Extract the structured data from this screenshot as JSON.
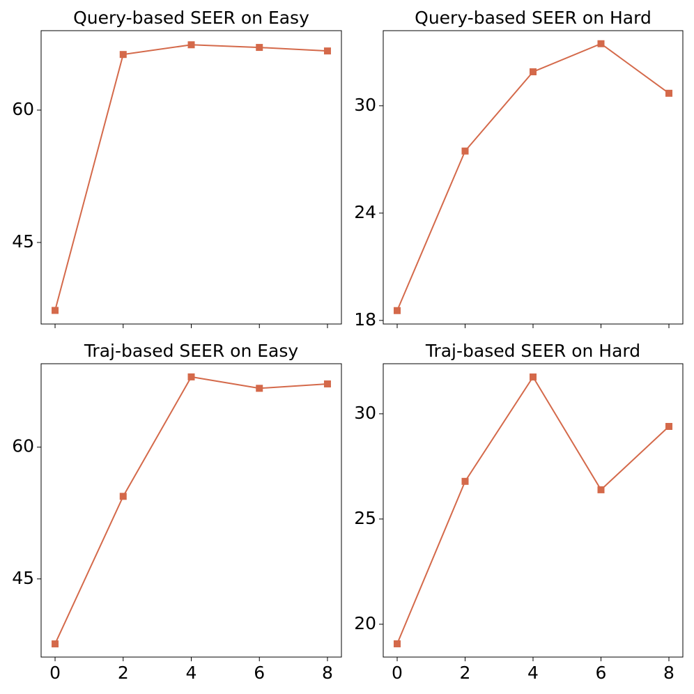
{
  "chart_data": [
    {
      "type": "line",
      "title": "Query-based SEER on Easy",
      "x": [
        0,
        2,
        4,
        6,
        8
      ],
      "values": [
        37.3,
        66.3,
        67.4,
        67.1,
        66.7
      ],
      "color": "#d4694a",
      "marker": "square",
      "xlim": [
        -0.41,
        8.41
      ],
      "xticks": [
        0,
        2,
        4,
        6,
        8
      ],
      "show_xtick_labels": false,
      "ylim": [
        35.76,
        69.0
      ],
      "yticks": [
        45,
        60
      ]
    },
    {
      "type": "line",
      "title": "Query-based SEER on Hard",
      "x": [
        0,
        2,
        4,
        6,
        8
      ],
      "values": [
        18.55,
        27.47,
        31.9,
        33.47,
        30.7
      ],
      "color": "#d4694a",
      "marker": "square",
      "xlim": [
        -0.41,
        8.41
      ],
      "xticks": [
        0,
        2,
        4,
        6,
        8
      ],
      "show_xtick_labels": false,
      "ylim": [
        17.8,
        34.2
      ],
      "yticks": [
        18,
        24,
        30
      ]
    },
    {
      "type": "line",
      "title": "Traj-based SEER on Easy",
      "x": [
        0,
        2,
        4,
        6,
        8
      ],
      "values": [
        37.6,
        54.4,
        68.0,
        66.7,
        67.2
      ],
      "color": "#d4694a",
      "marker": "square",
      "xlim": [
        -0.41,
        8.41
      ],
      "xticks": [
        0,
        2,
        4,
        6,
        8
      ],
      "show_xtick_labels": true,
      "ylim": [
        36.1,
        69.5
      ],
      "yticks": [
        45,
        60
      ]
    },
    {
      "type": "line",
      "title": "Traj-based SEER on Hard",
      "x": [
        0,
        2,
        4,
        6,
        8
      ],
      "values": [
        19.07,
        26.79,
        31.75,
        26.39,
        29.4
      ],
      "color": "#d4694a",
      "marker": "square",
      "xlim": [
        -0.41,
        8.41
      ],
      "xticks": [
        0,
        2,
        4,
        6,
        8
      ],
      "show_xtick_labels": true,
      "ylim": [
        18.44,
        32.38
      ],
      "yticks": [
        20,
        25,
        30
      ]
    }
  ]
}
